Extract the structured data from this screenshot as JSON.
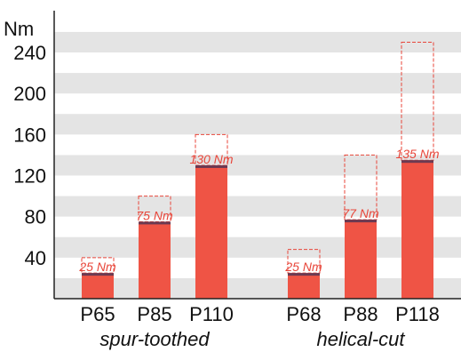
{
  "chart_data": {
    "type": "bar",
    "y_unit": "Nm",
    "y_ticks": [
      "40",
      "80",
      "120",
      "160",
      "200",
      "240"
    ],
    "ylim": [
      0,
      260
    ],
    "grid": "horizontal bands",
    "groups": [
      {
        "name": "spur-toothed",
        "bars": [
          {
            "category": "P65",
            "value": 25,
            "label": "25 Nm",
            "max": 40
          },
          {
            "category": "P85",
            "value": 75,
            "label": "75 Nm",
            "max": 100
          },
          {
            "category": "P110",
            "value": 130,
            "label": "130 Nm",
            "max": 160
          }
        ]
      },
      {
        "name": "helical-cut",
        "bars": [
          {
            "category": "P68",
            "value": 25,
            "label": "25 Nm",
            "max": 48
          },
          {
            "category": "P88",
            "value": 77,
            "label": "77 Nm",
            "max": 140
          },
          {
            "category": "P118",
            "value": 135,
            "label": "135 Nm",
            "max": 250
          }
        ]
      }
    ],
    "colors": {
      "bar": "#ef5445",
      "bar_top": "#6b3a52",
      "max_outline": "#e8463a",
      "band": "#e4e4e4",
      "axis": "#222222"
    }
  }
}
